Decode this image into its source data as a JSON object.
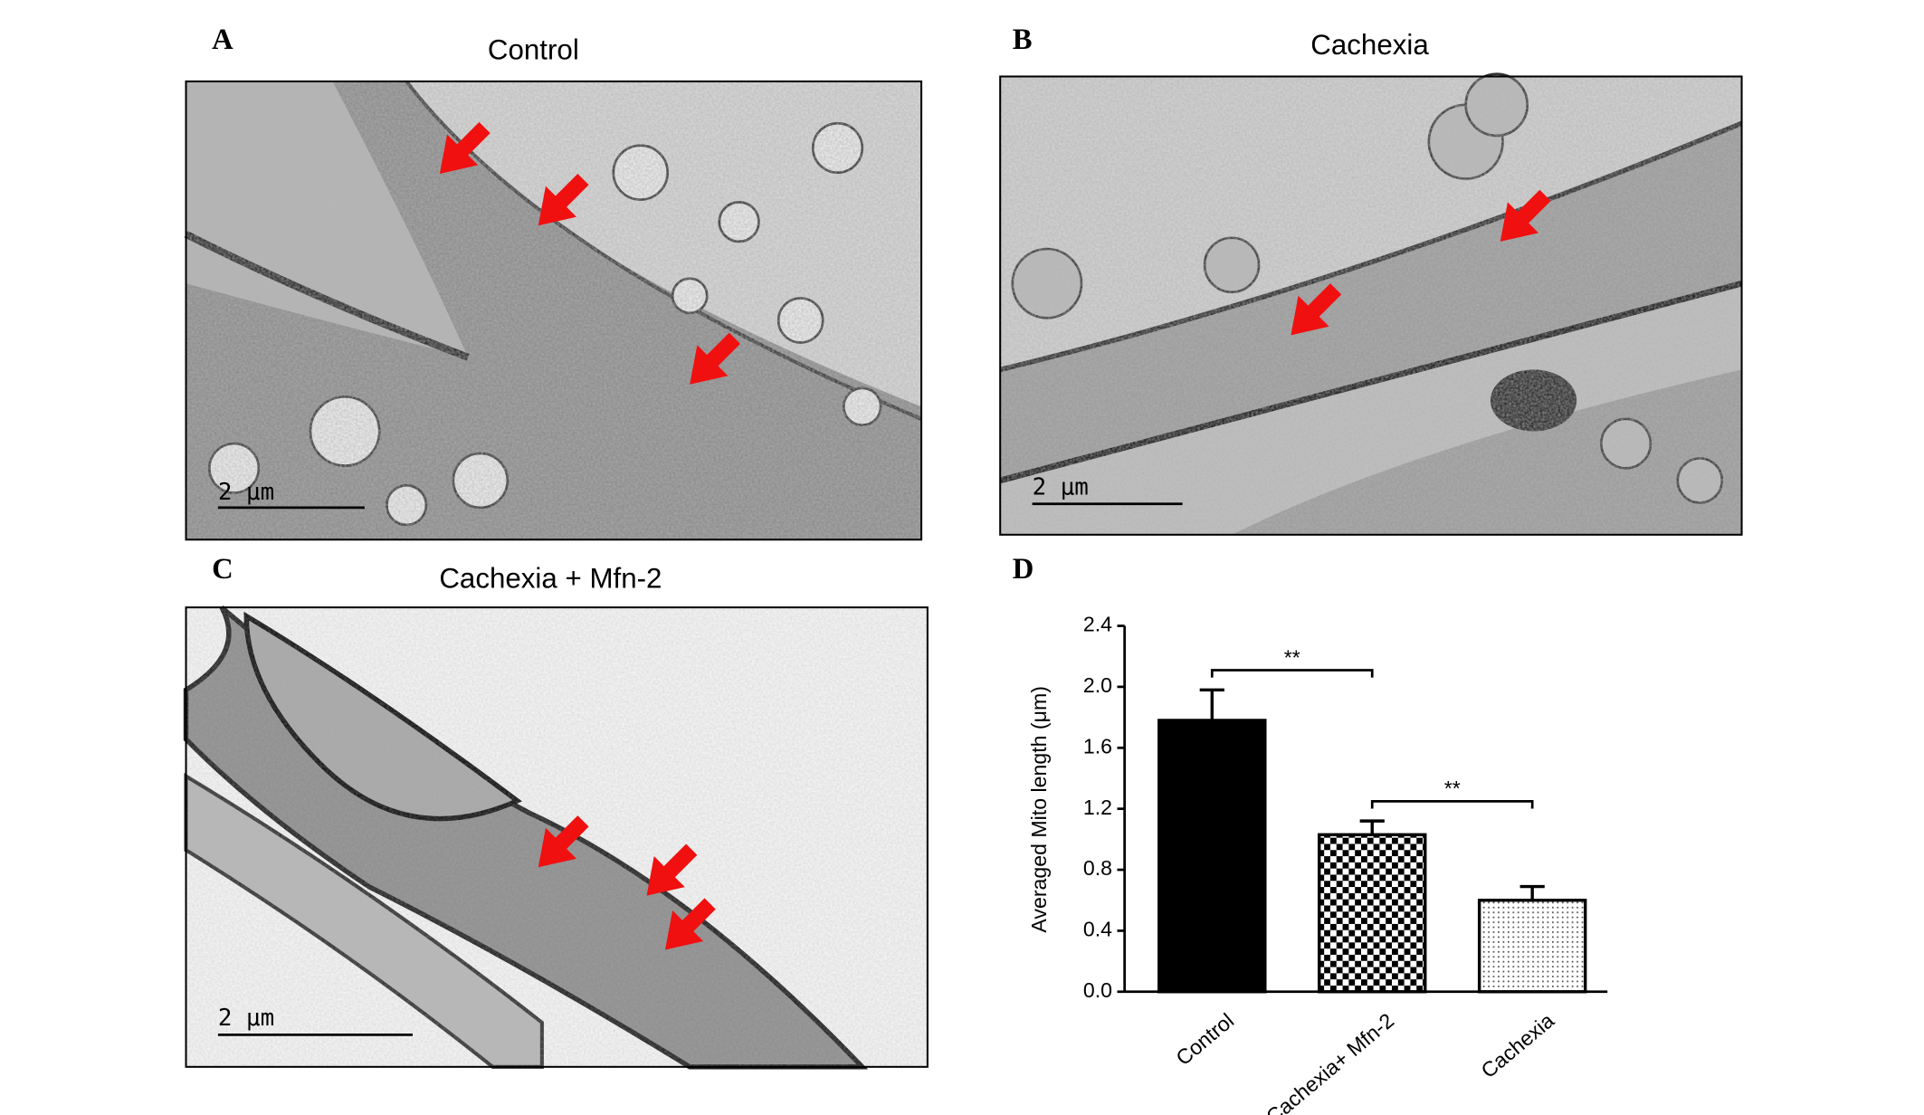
{
  "panels": [
    {
      "label": "A",
      "title": "Control",
      "scale_bar": "2 μm"
    },
    {
      "label": "B",
      "title": "Cachexia",
      "scale_bar": "2 μm"
    },
    {
      "label": "C",
      "title": "Cachexia + Mfn-2",
      "scale_bar": "2 μm"
    }
  ],
  "chart_data": {
    "type": "bar",
    "label": "D",
    "y_label": "Averaged Mito length (μm)",
    "categories": [
      "Control",
      "Cachexia+ Mfn-2",
      "Cachexia"
    ],
    "values": [
      1.78,
      1.03,
      0.6
    ],
    "errors": [
      0.2,
      0.09,
      0.09
    ],
    "ylim": [
      0,
      2.4
    ],
    "yticks": [
      {
        "value": 0,
        "label": "0.0"
      },
      {
        "value": 0.4,
        "label": "0.4"
      },
      {
        "value": 0.8,
        "label": "0.8"
      },
      {
        "value": 1.2,
        "label": "1.2"
      },
      {
        "value": 1.6,
        "label": "1.6"
      },
      {
        "value": 2.0,
        "label": "2.0"
      },
      {
        "value": 2.4,
        "label": "2.4"
      }
    ],
    "annotations": [
      "**",
      "**"
    ]
  }
}
